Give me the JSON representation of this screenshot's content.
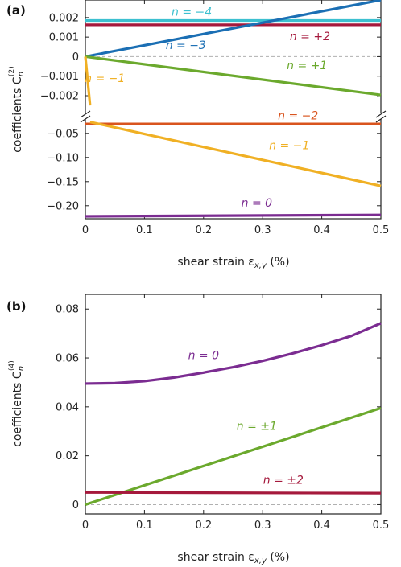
{
  "colors": {
    "cyan": "#3cc0d0",
    "crimson": "#a5193c",
    "blue": "#1b6fb4",
    "green": "#6ba92d",
    "yellow": "#f0b024",
    "orange": "#d9541e",
    "purple": "#7b2c91",
    "zero_line": "#b0b0b0"
  },
  "chart_data": [
    {
      "panel_label": "(a)",
      "type": "line",
      "broken_y_axis": true,
      "xlabel": "shear strain ε",
      "xlabel_sub": "x,y",
      "xlabel_unit": " (%)",
      "ylabel": "coefficients C",
      "ylabel_sub": "n",
      "ylabel_sup": "(2)",
      "xlim": [
        0,
        0.5
      ],
      "xticks": [
        0,
        0.1,
        0.2,
        0.3,
        0.4,
        0.5
      ],
      "xtick_labels": [
        "0",
        "0.1",
        "0.2",
        "0.3",
        "0.4",
        "0.5"
      ],
      "upper_ylim": [
        -0.0027,
        0.0029
      ],
      "upper_yticks": [
        0.002,
        0.001,
        0,
        -0.001,
        -0.002
      ],
      "upper_ytick_labels": [
        "0.002",
        "0.001",
        "0",
        "−0.001",
        "−0.002"
      ],
      "lower_ylim": [
        -0.227,
        -0.027
      ],
      "lower_yticks": [
        -0.05,
        -0.1,
        -0.15,
        -0.2
      ],
      "lower_ytick_labels": [
        "−0.05",
        "−0.10",
        "−0.15",
        "−0.20"
      ],
      "series": [
        {
          "name": "n = −4",
          "color": "cyan",
          "segment": "upper",
          "x": [
            0,
            0.5
          ],
          "y": [
            0.00185,
            0.00185
          ]
        },
        {
          "name": "n = +2",
          "color": "crimson",
          "segment": "upper",
          "x": [
            0,
            0.5
          ],
          "y": [
            0.00163,
            0.00163
          ]
        },
        {
          "name": "n = −3",
          "color": "blue",
          "segment": "upper",
          "x": [
            0,
            0.5
          ],
          "y": [
            0,
            0.0029
          ]
        },
        {
          "name": "n = +1",
          "color": "green",
          "segment": "upper",
          "x": [
            0,
            0.5
          ],
          "y": [
            0,
            -0.00196
          ]
        },
        {
          "name": "n = −1",
          "color": "yellow",
          "segment": "upper",
          "x": [
            0,
            0.008
          ],
          "y": [
            0,
            -0.0025
          ]
        },
        {
          "name": "n = −2",
          "color": "orange",
          "segment": "lower",
          "x": [
            0,
            0.5
          ],
          "y": [
            -0.0305,
            -0.0305
          ]
        },
        {
          "name": "n = −1",
          "color": "yellow",
          "segment": "lower",
          "x": [
            0.008,
            0.5
          ],
          "y": [
            -0.0265,
            -0.159
          ]
        },
        {
          "name": "n = 0",
          "color": "purple",
          "segment": "lower",
          "x": [
            0,
            0.5
          ],
          "y": [
            -0.222,
            -0.219
          ]
        }
      ],
      "annotations": [
        {
          "text": "n = −4",
          "color": "cyan",
          "segment": "upper",
          "x": 0.18,
          "y": 0.0021
        },
        {
          "text": "n = +2",
          "color": "crimson",
          "segment": "upper",
          "x": 0.38,
          "y": 0.00085
        },
        {
          "text": "n = −3",
          "color": "blue",
          "segment": "upper",
          "x": 0.17,
          "y": 0.00038
        },
        {
          "text": "n = +1",
          "color": "green",
          "segment": "upper",
          "x": 0.375,
          "y": -0.00065
        },
        {
          "text": "n = −1",
          "color": "yellow",
          "segment": "upper",
          "x": 0.033,
          "y": -0.0013
        },
        {
          "text": "n = −2",
          "color": "orange",
          "segment": "lower",
          "x": 0.36,
          "y": -0.021
        },
        {
          "text": "n = −1",
          "color": "yellow",
          "segment": "lower",
          "x": 0.345,
          "y": -0.083
        },
        {
          "text": "n = 0",
          "color": "purple",
          "segment": "lower",
          "x": 0.29,
          "y": -0.202
        }
      ]
    },
    {
      "panel_label": "(b)",
      "type": "line",
      "xlabel": "shear strain ε",
      "xlabel_sub": "x,y",
      "xlabel_unit": " (%)",
      "ylabel": "coefficients C",
      "ylabel_sub": "n",
      "ylabel_sup": "(4)",
      "xlim": [
        0,
        0.5
      ],
      "ylim": [
        -0.0038,
        0.086
      ],
      "xticks": [
        0,
        0.1,
        0.2,
        0.3,
        0.4,
        0.5
      ],
      "xtick_labels": [
        "0",
        "0.1",
        "0.2",
        "0.3",
        "0.4",
        "0.5"
      ],
      "yticks": [
        0,
        0.02,
        0.04,
        0.06,
        0.08
      ],
      "ytick_labels": [
        "0",
        "0.02",
        "0.04",
        "0.06",
        "0.08"
      ],
      "series": [
        {
          "name": "n = 0",
          "color": "purple",
          "x": [
            0,
            0.05,
            0.1,
            0.15,
            0.2,
            0.25,
            0.3,
            0.35,
            0.4,
            0.45,
            0.5
          ],
          "y": [
            0.0495,
            0.0497,
            0.0505,
            0.052,
            0.054,
            0.0562,
            0.0588,
            0.0618,
            0.0652,
            0.069,
            0.0742
          ]
        },
        {
          "name": "n = ±1",
          "color": "green",
          "x": [
            0,
            0.5
          ],
          "y": [
            0,
            0.0395
          ]
        },
        {
          "name": "n = ±2",
          "color": "crimson",
          "x": [
            0,
            0.5
          ],
          "y": [
            0.005,
            0.0047
          ]
        }
      ],
      "annotations": [
        {
          "text": "n = 0",
          "color": "purple",
          "x": 0.2,
          "y": 0.0595
        },
        {
          "text": "n = ±1",
          "color": "green",
          "x": 0.29,
          "y": 0.0305
        },
        {
          "text": "n = ±2",
          "color": "crimson",
          "x": 0.335,
          "y": 0.0085
        }
      ]
    }
  ]
}
